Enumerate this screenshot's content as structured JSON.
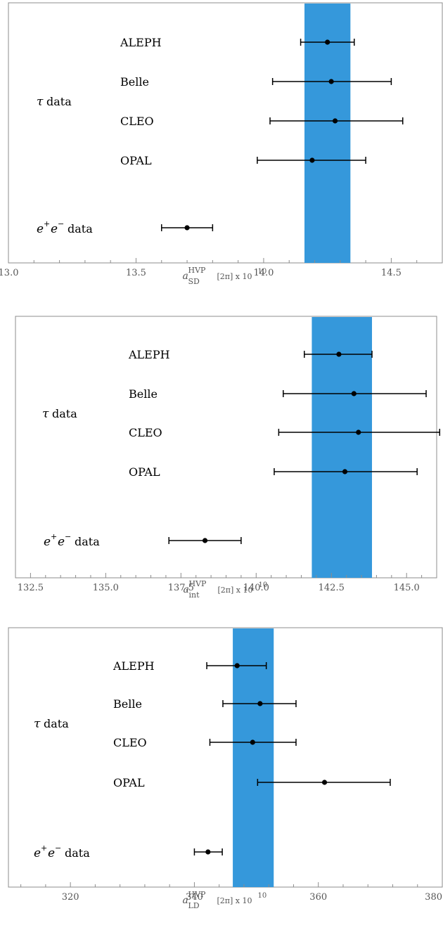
{
  "chart_data": [
    {
      "type": "scatter",
      "title": "",
      "xlabel": {
        "base": "a",
        "sup": "HVP",
        "sub": "SD",
        "tail": "[2π] x 10",
        "exp": "10"
      },
      "ylabel": "",
      "xlim": [
        13.0,
        14.7
      ],
      "xticks": [
        "13.0",
        "13.5",
        "14.0",
        "14.5"
      ],
      "band": {
        "lo": 14.16,
        "hi": 14.34,
        "color": "#3598DB"
      },
      "group_label": {
        "sym": "τ",
        "text": "data"
      },
      "ee_label": {
        "text": "data"
      },
      "points": [
        {
          "name": "ALEPH",
          "value": 14.25,
          "lo": 14.145,
          "hi": 14.355
        },
        {
          "name": "Belle",
          "value": 14.265,
          "lo": 14.035,
          "hi": 14.5
        },
        {
          "name": "CLEO",
          "value": 14.28,
          "lo": 14.025,
          "hi": 14.545
        },
        {
          "name": "OPAL",
          "value": 14.19,
          "lo": 13.975,
          "hi": 14.4
        },
        {
          "name": "",
          "value": 13.7,
          "lo": 13.6,
          "hi": 13.8
        }
      ]
    },
    {
      "type": "scatter",
      "title": "",
      "xlabel": {
        "base": "a",
        "sup": "HVP",
        "sub": "int",
        "tail": "[2π] x 10",
        "exp": "10"
      },
      "ylabel": "",
      "xlim": [
        132.0,
        146.0
      ],
      "xticks": [
        "132.5",
        "135.0",
        "137.5",
        "140.0",
        "142.5",
        "145.0"
      ],
      "band": {
        "lo": 141.85,
        "hi": 143.85,
        "color": "#3598DB"
      },
      "group_label": {
        "sym": "τ",
        "text": "data"
      },
      "ee_label": {
        "text": "data"
      },
      "points": [
        {
          "name": "ALEPH",
          "value": 142.75,
          "lo": 141.6,
          "hi": 143.85
        },
        {
          "name": "Belle",
          "value": 143.25,
          "lo": 140.9,
          "hi": 145.65
        },
        {
          "name": "CLEO",
          "value": 143.4,
          "lo": 140.75,
          "hi": 146.1
        },
        {
          "name": "OPAL",
          "value": 142.95,
          "lo": 140.6,
          "hi": 145.35
        },
        {
          "name": "",
          "value": 138.3,
          "lo": 137.1,
          "hi": 139.5
        }
      ]
    },
    {
      "type": "scatter",
      "title": "",
      "xlabel": {
        "base": "a",
        "sup": "HVP",
        "sub": "LD",
        "tail": "[2π] x 10",
        "exp": "10"
      },
      "ylabel": "",
      "xlim": [
        310.0,
        380.0
      ],
      "xticks": [
        "320",
        "340",
        "360",
        "380"
      ],
      "band": {
        "lo": 346.2,
        "hi": 352.8,
        "color": "#3598DB"
      },
      "group_label": {
        "sym": "τ",
        "text": "data"
      },
      "ee_label": {
        "text": "data"
      },
      "points": [
        {
          "name": "ALEPH",
          "value": 346.9,
          "lo": 342.0,
          "hi": 351.6
        },
        {
          "name": "Belle",
          "value": 350.6,
          "lo": 344.6,
          "hi": 356.4
        },
        {
          "name": "CLEO",
          "value": 349.4,
          "lo": 342.5,
          "hi": 356.4
        },
        {
          "name": "OPAL",
          "value": 361.0,
          "lo": 350.2,
          "hi": 371.6
        },
        {
          "name": "",
          "value": 342.2,
          "lo": 340.0,
          "hi": 344.5
        }
      ]
    }
  ]
}
